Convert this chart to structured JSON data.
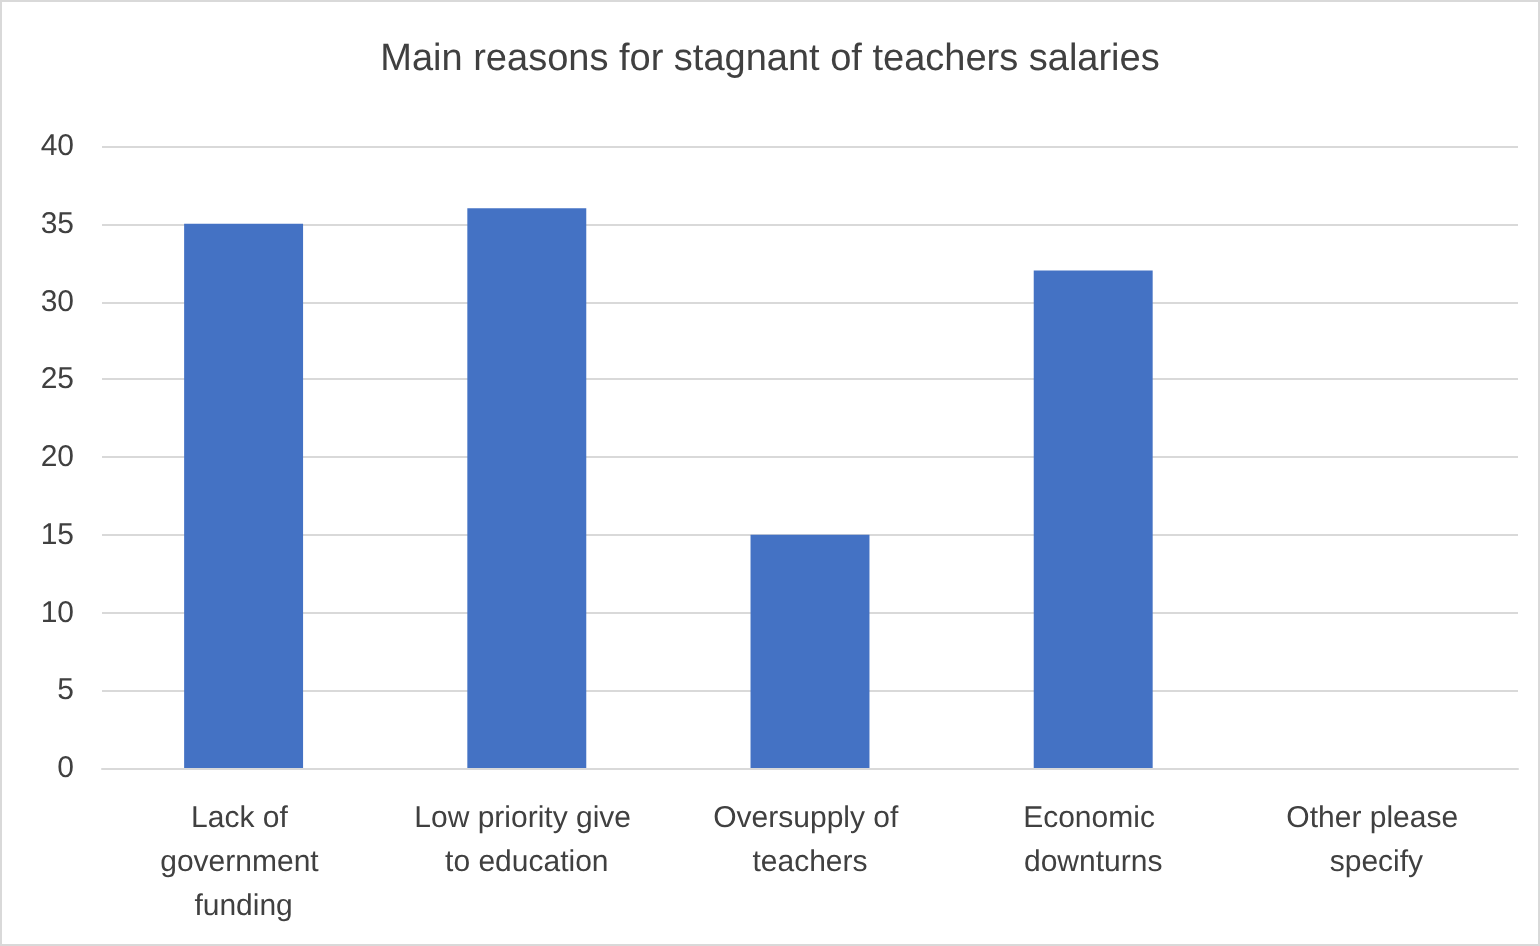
{
  "chart_data": {
    "type": "bar",
    "title": "Main reasons for stagnant of teachers salaries",
    "categories": [
      "Lack of government funding",
      "Low priority give to education",
      "Oversupply of teachers",
      "Economic downturns",
      "Other please specify"
    ],
    "values": [
      35,
      36,
      15,
      32,
      0
    ],
    "color": "#4472c4",
    "ylim": [
      0,
      40
    ],
    "yticks": [
      0,
      5,
      10,
      15,
      20,
      25,
      30,
      35,
      40
    ],
    "grid": "y"
  }
}
